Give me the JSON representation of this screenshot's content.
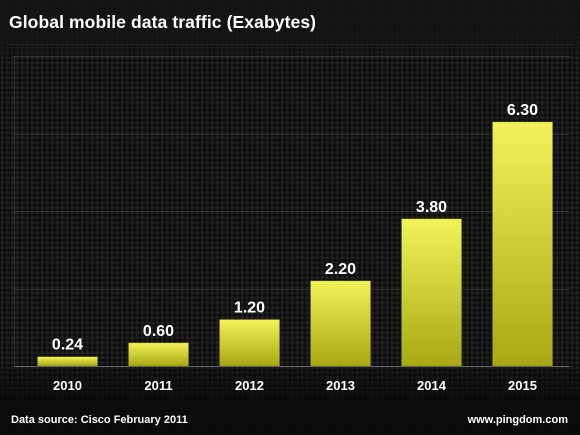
{
  "chart_data": {
    "type": "bar",
    "title": "Global mobile data traffic (Exabytes)",
    "categories": [
      "2010",
      "2011",
      "2012",
      "2013",
      "2014",
      "2015"
    ],
    "values": [
      0.24,
      0.6,
      1.2,
      2.2,
      3.8,
      6.3
    ],
    "value_labels": [
      "0.24",
      "0.60",
      "1.20",
      "2.20",
      "3.80",
      "6.30"
    ],
    "xlabel": "",
    "ylabel": "",
    "ylim": [
      0,
      8
    ],
    "grid": true,
    "y_tick_labels_shown": false,
    "colors": {
      "bar_top": "#f2f25a",
      "bar_bottom": "#a8a814",
      "text": "#ffffff"
    }
  },
  "footer": {
    "source": "Data source: Cisco February 2011",
    "site": "www.pingdom.com"
  }
}
